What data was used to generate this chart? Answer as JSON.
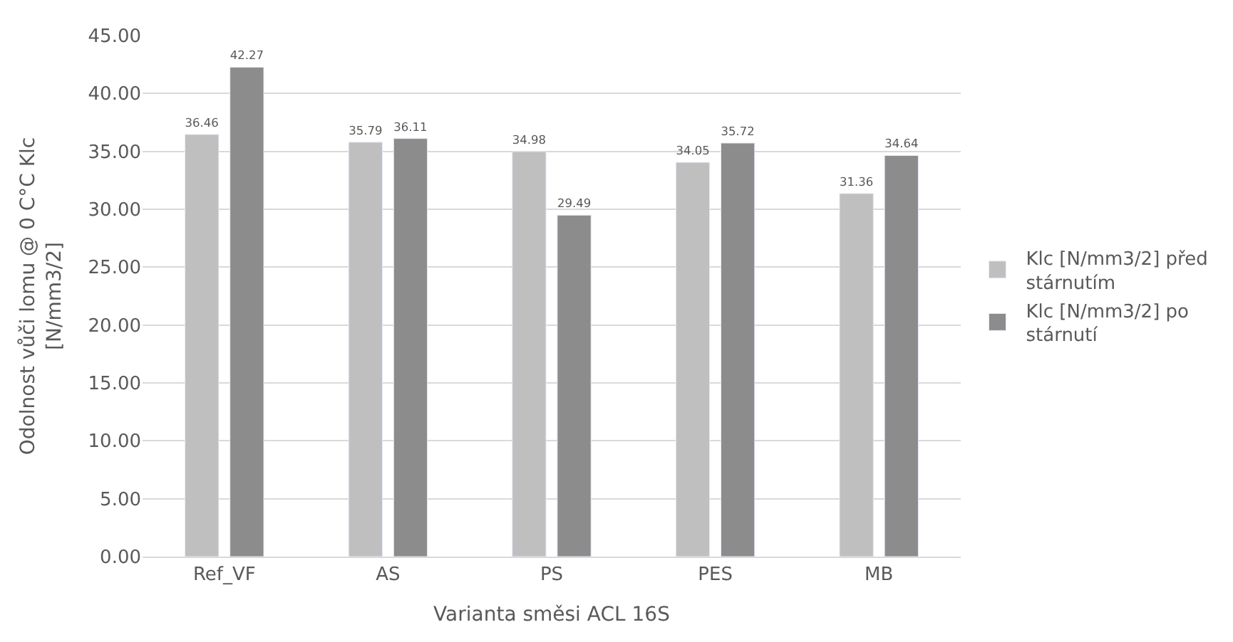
{
  "chart_data": {
    "type": "bar",
    "xlabel": "Varianta směsi ACL 16S",
    "ylabel": "Odolnost vůči lomu @ 0 C°C Klc\n[N/mm3/2]",
    "categories": [
      "Ref_VF",
      "AS",
      "PS",
      "PES",
      "MB"
    ],
    "series": [
      {
        "name": "Klc [N/mm3/2] před stárnutím",
        "color": "#bfbfbf",
        "values": [
          36.46,
          35.79,
          34.98,
          34.05,
          31.36
        ]
      },
      {
        "name": "Klc [N/mm3/2] po stárnutí",
        "color": "#8c8c8c",
        "values": [
          42.27,
          36.11,
          29.49,
          35.72,
          34.64
        ]
      }
    ],
    "ylim": [
      0,
      45
    ],
    "yticks": [
      {
        "value": 0,
        "label": "0.00"
      },
      {
        "value": 5,
        "label": "5.00"
      },
      {
        "value": 10,
        "label": "10.00"
      },
      {
        "value": 15,
        "label": "15.00"
      },
      {
        "value": 20,
        "label": "20.00"
      },
      {
        "value": 25,
        "label": "25.00"
      },
      {
        "value": 30,
        "label": "30.00"
      },
      {
        "value": 35,
        "label": "35.00"
      },
      {
        "value": 40,
        "label": "40.00"
      },
      {
        "value": 45,
        "label": "45.00"
      }
    ],
    "grid": "y",
    "legend": "right",
    "data_labels": true
  }
}
